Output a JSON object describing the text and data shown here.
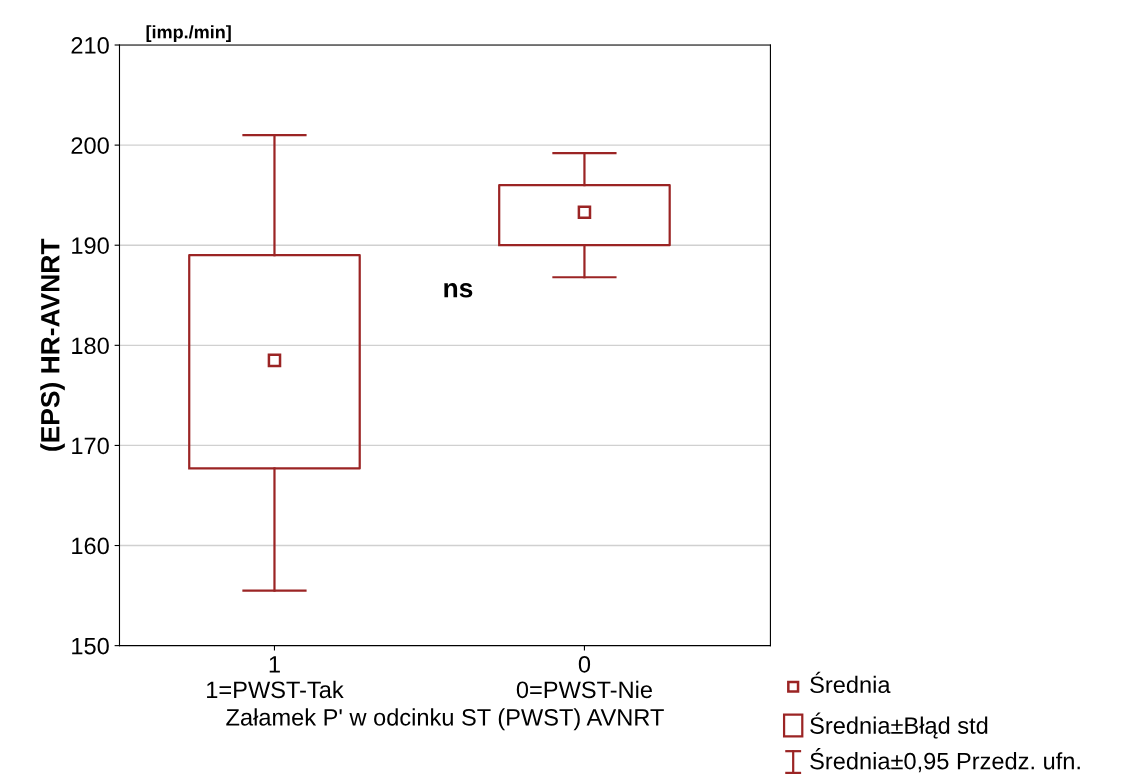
{
  "chart_data": {
    "type": "box",
    "ylabel": "(EPS) HR-AVNRT",
    "xlabel": "Załamek P' w odcinku ST (PWST) AVNRT",
    "categories": [
      "1\n1=PWST-Tak",
      "0\n0=PWST-Nie"
    ],
    "boxes": [
      {
        "low": 155.5,
        "q1": 167.7,
        "median": 178.5,
        "q3": 189,
        "high": 201
      },
      {
        "low": 186.8,
        "q1": 190,
        "median": 193.3,
        "q3": 196,
        "high": 199.2
      }
    ],
    "color": "#9b2424",
    "ylim": [
      150,
      210
    ],
    "yticks": [
      150,
      160,
      170,
      180,
      190,
      200,
      210
    ],
    "grid": "y",
    "marker": "square",
    "annotations": [
      "[imp./min]",
      "ns",
      "Średnia",
      "Średnia±Błąd std",
      "Średnia±0,95 Przedz. ufn."
    ]
  }
}
